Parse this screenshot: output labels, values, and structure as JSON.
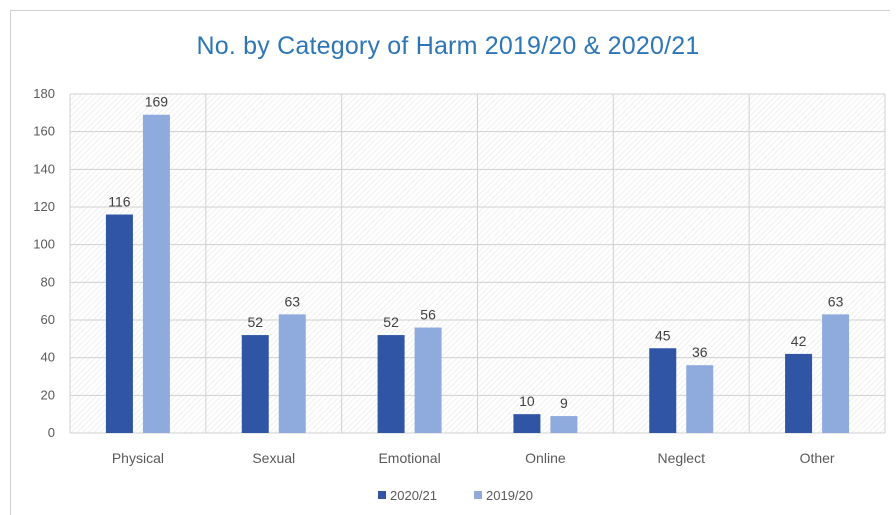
{
  "chart_data": {
    "type": "bar",
    "title": "No. by Category of Harm 2019/20 & 2020/21",
    "categories": [
      "Physical",
      "Sexual",
      "Emotional",
      "Online",
      "Neglect",
      "Other"
    ],
    "series": [
      {
        "name": "2020/21",
        "color": "#2f55a4",
        "values": [
          116,
          52,
          52,
          10,
          45,
          42
        ]
      },
      {
        "name": "2019/20",
        "color": "#8faadc",
        "values": [
          169,
          63,
          56,
          9,
          36,
          63
        ]
      }
    ],
    "ylim": [
      0,
      180
    ],
    "yticks": [
      0,
      20,
      40,
      60,
      80,
      100,
      120,
      140,
      160,
      180
    ],
    "xlabel": "",
    "ylabel": "",
    "grid": true,
    "legend_position": "bottom"
  }
}
